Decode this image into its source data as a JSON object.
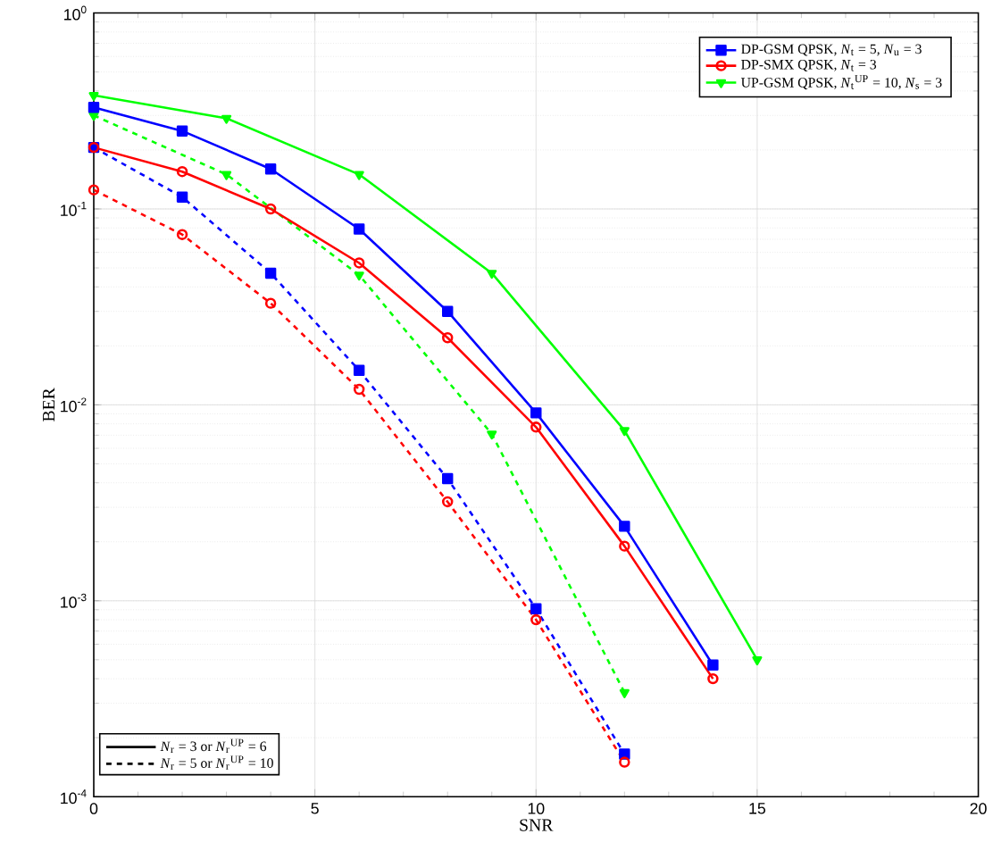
{
  "chart_data": {
    "type": "line",
    "xlabel": "SNR",
    "ylabel": "BER",
    "xlim": [
      0,
      20
    ],
    "xticks": [
      0,
      5,
      10,
      15,
      20
    ],
    "ylim": [
      0.0001,
      1
    ],
    "yticks": [
      {
        "value": 0.0001,
        "label": "10$^{-4}$"
      },
      {
        "value": 0.001,
        "label": "10$^{-3}$"
      },
      {
        "value": 0.01,
        "label": "10$^{-2}$"
      },
      {
        "value": 0.1,
        "label": "10$^{-1}$"
      },
      {
        "value": 1,
        "label": "10$^{0}$"
      }
    ],
    "log": "y",
    "grid": true,
    "legend": "top right",
    "annotations": [
      "*N*$_{r}$ = 3 or *N*$_{r}$$^{UP}$ = 6",
      "*N*$_{r}$ = 5 or *N*$_{r}$$^{UP}$ = 10"
    ],
    "series": [
      {
        "name": "DP-GSM QPSK, *N*$_{t}$ = 5, *N*$_{u}$ = 3",
        "color": "#0000ff",
        "marker": "square",
        "line_style": "solid",
        "x": [
          0,
          2,
          4,
          6,
          8,
          10,
          12,
          14
        ],
        "values": [
          0.33,
          0.25,
          0.16,
          0.079,
          0.03,
          0.0091,
          0.0024,
          0.00047
        ]
      },
      {
        "name": "DP-SMX QPSK, *N*$_{t}$ = 3",
        "color": "#ff0000",
        "marker": "circle",
        "line_style": "solid",
        "x": [
          0,
          2,
          4,
          6,
          8,
          10,
          12,
          14
        ],
        "values": [
          0.206,
          0.155,
          0.1,
          0.053,
          0.022,
          0.0077,
          0.0019,
          0.0004
        ]
      },
      {
        "name": "UP-GSM QPSK, *N*$_{t}$$^{UP}$ = 10, *N*$_{s}$ = 3",
        "color": "#00ff00",
        "marker": "triangle",
        "line_style": "solid",
        "x": [
          0,
          3,
          6,
          9,
          12,
          15
        ],
        "values": [
          0.38,
          0.29,
          0.15,
          0.047,
          0.0074,
          0.0005
        ]
      },
      {
        "color": "#0000ff",
        "marker": "square",
        "line_style": "dashed",
        "x": [
          0,
          2,
          4,
          6,
          8,
          10,
          12
        ],
        "values": [
          0.206,
          0.115,
          0.047,
          0.015,
          0.0042,
          0.00091,
          0.000165
        ]
      },
      {
        "color": "#ff0000",
        "marker": "circle",
        "line_style": "dashed",
        "x": [
          0,
          2,
          4,
          6,
          8,
          10,
          12
        ],
        "values": [
          0.125,
          0.074,
          0.033,
          0.012,
          0.0032,
          0.0008,
          0.00015
        ]
      },
      {
        "color": "#00ff00",
        "marker": "triangle",
        "line_style": "dashed",
        "x": [
          0,
          3,
          6,
          9,
          12
        ],
        "values": [
          0.3,
          0.15,
          0.046,
          0.0071,
          0.00034
        ]
      }
    ]
  }
}
